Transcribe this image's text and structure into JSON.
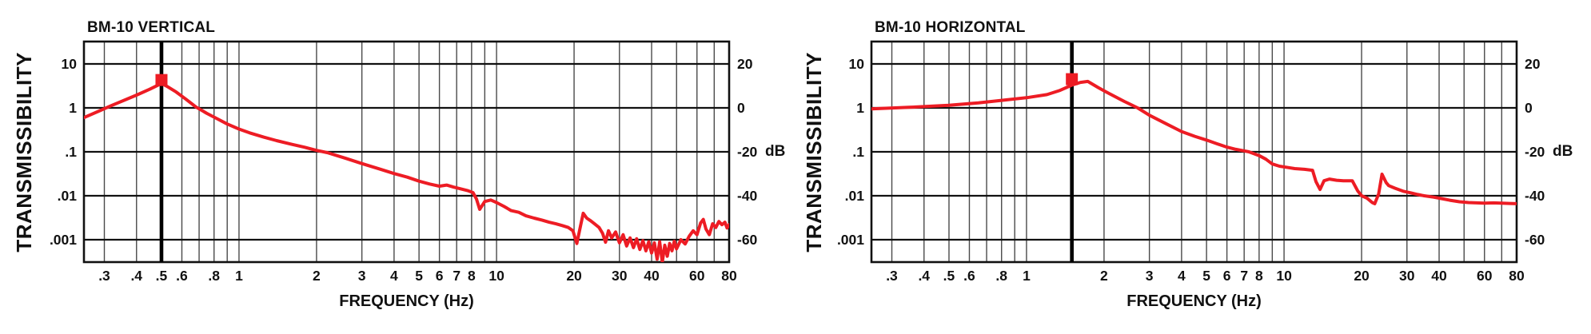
{
  "page": {
    "background": "#FFFFFF"
  },
  "colors": {
    "curve_red": "#ED1C24",
    "marker_red": "#ED1C24",
    "axis_black": "#111111",
    "grid_minor_gray": "#4A4A4A",
    "natural_frequency_line": "#000000",
    "text": "#111111"
  },
  "chart_data": [
    {
      "type": "line",
      "title": "BM-10 VERTICAL",
      "xlabel": "FREQUENCY (Hz)",
      "ylabel": "TRANSMISSIBILITY",
      "db_unit": "dB",
      "x_scale": "log",
      "y_scale": "log",
      "xlim": [
        0.25,
        80
      ],
      "ylim": [
        0.00031,
        32.3
      ],
      "grid": true,
      "x_gridlines": [
        0.3,
        0.4,
        0.5,
        0.6,
        0.7,
        0.8,
        0.9,
        1,
        2,
        3,
        4,
        5,
        6,
        7,
        8,
        9,
        10,
        20,
        30,
        40,
        50,
        60,
        70
      ],
      "y_gridlines": [
        10,
        1,
        0.1,
        0.01,
        0.001
      ],
      "x_ticks": [
        {
          "f": 0.3,
          "label": ".3"
        },
        {
          "f": 0.4,
          "label": ".4"
        },
        {
          "f": 0.5,
          "label": ".5"
        },
        {
          "f": 0.6,
          "label": ".6"
        },
        {
          "f": 0.8,
          "label": ".8"
        },
        {
          "f": 1,
          "label": "1"
        },
        {
          "f": 2,
          "label": "2"
        },
        {
          "f": 3,
          "label": "3"
        },
        {
          "f": 4,
          "label": "4"
        },
        {
          "f": 5,
          "label": "5"
        },
        {
          "f": 6,
          "label": "6"
        },
        {
          "f": 7,
          "label": "7"
        },
        {
          "f": 8,
          "label": "8"
        },
        {
          "f": 10,
          "label": "10"
        },
        {
          "f": 20,
          "label": "20"
        },
        {
          "f": 30,
          "label": "30"
        },
        {
          "f": 40,
          "label": "40"
        },
        {
          "f": 60,
          "label": "60"
        },
        {
          "f": 80,
          "label": "80"
        }
      ],
      "y_ticks": [
        {
          "v": 10,
          "label": "10"
        },
        {
          "v": 1,
          "label": "1"
        },
        {
          "v": 0.1,
          "label": ".1"
        },
        {
          "v": 0.01,
          "label": ".01"
        },
        {
          "v": 0.001,
          "label": ".001"
        }
      ],
      "db_ticks": [
        {
          "db": 20,
          "label": "20"
        },
        {
          "db": 0,
          "label": "0"
        },
        {
          "db": -20,
          "label": "-20",
          "show_unit": true
        },
        {
          "db": -40,
          "label": "-40"
        },
        {
          "db": -60,
          "label": "-60"
        }
      ],
      "natural_frequency_hz": 0.5,
      "resonance_marker": {
        "f": 0.5,
        "t": 4.3
      },
      "series": [
        {
          "name": "transmissibility",
          "points": [
            [
              0.25,
              0.6
            ],
            [
              0.32,
              1.13
            ],
            [
              0.4,
              1.95
            ],
            [
              0.45,
              2.65
            ],
            [
              0.5,
              3.6
            ],
            [
              0.53,
              3.0
            ],
            [
              0.57,
              2.3
            ],
            [
              0.62,
              1.6
            ],
            [
              0.68,
              1.05
            ],
            [
              0.75,
              0.75
            ],
            [
              0.82,
              0.57
            ],
            [
              0.9,
              0.43
            ],
            [
              1.0,
              0.33
            ],
            [
              1.1,
              0.27
            ],
            [
              1.25,
              0.215
            ],
            [
              1.4,
              0.18
            ],
            [
              1.6,
              0.148
            ],
            [
              1.8,
              0.127
            ],
            [
              2.0,
              0.108
            ],
            [
              2.2,
              0.096
            ],
            [
              2.6,
              0.071
            ],
            [
              3.0,
              0.054
            ],
            [
              3.5,
              0.041
            ],
            [
              4.0,
              0.032
            ],
            [
              4.5,
              0.0265
            ],
            [
              5.0,
              0.0215
            ],
            [
              5.5,
              0.0185
            ],
            [
              6.0,
              0.0165
            ],
            [
              6.4,
              0.0175
            ],
            [
              6.8,
              0.0158
            ],
            [
              7.2,
              0.0145
            ],
            [
              7.7,
              0.0132
            ],
            [
              8.1,
              0.0118
            ],
            [
              8.35,
              0.0085
            ],
            [
              8.6,
              0.0049
            ],
            [
              9.0,
              0.0074
            ],
            [
              9.5,
              0.008
            ],
            [
              10,
              0.007
            ],
            [
              10.7,
              0.0057
            ],
            [
              11.4,
              0.0046
            ],
            [
              12.2,
              0.0042
            ],
            [
              13,
              0.0035
            ],
            [
              14,
              0.0031
            ],
            [
              15,
              0.0028
            ],
            [
              16,
              0.0025
            ],
            [
              17,
              0.0023
            ],
            [
              18,
              0.0021
            ],
            [
              19,
              0.0019
            ],
            [
              19.8,
              0.0016
            ],
            [
              20.5,
              0.00082
            ],
            [
              21.2,
              0.0021
            ],
            [
              21.7,
              0.004
            ],
            [
              22.4,
              0.0031
            ],
            [
              23.2,
              0.0027
            ],
            [
              24,
              0.0023
            ],
            [
              25,
              0.0019
            ],
            [
              25.8,
              0.0014
            ],
            [
              26.5,
              0.00088
            ],
            [
              27.2,
              0.0016
            ],
            [
              28,
              0.0011
            ],
            [
              29,
              0.0015
            ],
            [
              30,
              0.00085
            ],
            [
              31,
              0.0013
            ],
            [
              32,
              0.00072
            ],
            [
              33,
              0.0011
            ],
            [
              34,
              0.00066
            ],
            [
              35,
              0.00105
            ],
            [
              36,
              0.0006
            ],
            [
              37,
              0.00095
            ],
            [
              38,
              0.00056
            ],
            [
              39,
              0.0009
            ],
            [
              40,
              0.0005
            ],
            [
              41,
              0.00085
            ],
            [
              42,
              0.00036
            ],
            [
              43,
              0.0009
            ],
            [
              44,
              0.00031
            ],
            [
              45,
              0.00075
            ],
            [
              46,
              0.00042
            ],
            [
              47,
              0.00082
            ],
            [
              48,
              0.00056
            ],
            [
              49,
              0.00092
            ],
            [
              50,
              0.00062
            ],
            [
              52,
              0.001
            ],
            [
              54,
              0.0008
            ],
            [
              56,
              0.0012
            ],
            [
              58,
              0.0016
            ],
            [
              60,
              0.0013
            ],
            [
              62,
              0.0024
            ],
            [
              63.5,
              0.0029
            ],
            [
              65,
              0.00175
            ],
            [
              67,
              0.0013
            ],
            [
              69,
              0.0023
            ],
            [
              71,
              0.0019
            ],
            [
              73,
              0.0026
            ],
            [
              75,
              0.0022
            ],
            [
              77,
              0.0025
            ],
            [
              78.5,
              0.00185
            ],
            [
              80,
              0.0022
            ]
          ]
        }
      ]
    },
    {
      "type": "line",
      "title": "BM-10 HORIZONTAL",
      "xlabel": "FREQUENCY (Hz)",
      "ylabel": "TRANSMISSIBILITY",
      "db_unit": "dB",
      "x_scale": "log",
      "y_scale": "log",
      "xlim": [
        0.25,
        80
      ],
      "ylim": [
        0.00031,
        32.3
      ],
      "grid": true,
      "x_gridlines": [
        0.3,
        0.4,
        0.5,
        0.6,
        0.7,
        0.8,
        0.9,
        1,
        2,
        3,
        4,
        5,
        6,
        7,
        8,
        9,
        10,
        20,
        30,
        40,
        50,
        60,
        70
      ],
      "y_gridlines": [
        10,
        1,
        0.1,
        0.01,
        0.001
      ],
      "x_ticks": [
        {
          "f": 0.3,
          "label": ".3"
        },
        {
          "f": 0.4,
          "label": ".4"
        },
        {
          "f": 0.5,
          "label": ".5"
        },
        {
          "f": 0.6,
          "label": ".6"
        },
        {
          "f": 0.8,
          "label": ".8"
        },
        {
          "f": 1,
          "label": "1"
        },
        {
          "f": 2,
          "label": "2"
        },
        {
          "f": 3,
          "label": "3"
        },
        {
          "f": 4,
          "label": "4"
        },
        {
          "f": 5,
          "label": "5"
        },
        {
          "f": 6,
          "label": "6"
        },
        {
          "f": 7,
          "label": "7"
        },
        {
          "f": 8,
          "label": "8"
        },
        {
          "f": 10,
          "label": "10"
        },
        {
          "f": 20,
          "label": "20"
        },
        {
          "f": 30,
          "label": "30"
        },
        {
          "f": 40,
          "label": "40"
        },
        {
          "f": 60,
          "label": "60"
        },
        {
          "f": 80,
          "label": "80"
        }
      ],
      "y_ticks": [
        {
          "v": 10,
          "label": "10"
        },
        {
          "v": 1,
          "label": "1"
        },
        {
          "v": 0.1,
          "label": ".1"
        },
        {
          "v": 0.01,
          "label": ".01"
        },
        {
          "v": 0.001,
          "label": ".001"
        }
      ],
      "db_ticks": [
        {
          "db": 20,
          "label": "20"
        },
        {
          "db": 0,
          "label": "0"
        },
        {
          "db": -20,
          "label": "-20",
          "show_unit": true
        },
        {
          "db": -40,
          "label": "-40"
        },
        {
          "db": -60,
          "label": "-60"
        }
      ],
      "natural_frequency_hz": 1.5,
      "resonance_marker": {
        "f": 1.5,
        "t": 4.5
      },
      "series": [
        {
          "name": "transmissibility",
          "points": [
            [
              0.25,
              0.95
            ],
            [
              0.35,
              1.03
            ],
            [
              0.5,
              1.15
            ],
            [
              0.65,
              1.3
            ],
            [
              0.8,
              1.48
            ],
            [
              1.0,
              1.7
            ],
            [
              1.2,
              2.0
            ],
            [
              1.35,
              2.5
            ],
            [
              1.5,
              3.3
            ],
            [
              1.62,
              3.8
            ],
            [
              1.73,
              4.0
            ],
            [
              1.9,
              2.9
            ],
            [
              2.0,
              2.45
            ],
            [
              2.1,
              2.1
            ],
            [
              2.4,
              1.4
            ],
            [
              2.7,
              1.0
            ],
            [
              3.0,
              0.68
            ],
            [
              3.5,
              0.43
            ],
            [
              4.0,
              0.29
            ],
            [
              4.5,
              0.225
            ],
            [
              5.0,
              0.185
            ],
            [
              5.5,
              0.152
            ],
            [
              6.0,
              0.128
            ],
            [
              6.5,
              0.114
            ],
            [
              7.0,
              0.105
            ],
            [
              7.3,
              0.1
            ],
            [
              8.0,
              0.082
            ],
            [
              8.5,
              0.068
            ],
            [
              9.0,
              0.053
            ],
            [
              9.6,
              0.047
            ],
            [
              10.2,
              0.0445
            ],
            [
              11,
              0.0415
            ],
            [
              12,
              0.04
            ],
            [
              12.9,
              0.038
            ],
            [
              13.3,
              0.021
            ],
            [
              13.8,
              0.0139
            ],
            [
              14.3,
              0.022
            ],
            [
              15,
              0.024
            ],
            [
              16,
              0.0225
            ],
            [
              17,
              0.022
            ],
            [
              18.4,
              0.022
            ],
            [
              19.3,
              0.013
            ],
            [
              20,
              0.01
            ],
            [
              21,
              0.0088
            ],
            [
              22,
              0.007
            ],
            [
              22.5,
              0.0066
            ],
            [
              23.3,
              0.011
            ],
            [
              24,
              0.031
            ],
            [
              24.9,
              0.02
            ],
            [
              25.5,
              0.017
            ],
            [
              27,
              0.0148
            ],
            [
              29,
              0.0127
            ],
            [
              31,
              0.0117
            ],
            [
              33,
              0.0107
            ],
            [
              35,
              0.01
            ],
            [
              38,
              0.0093
            ],
            [
              41,
              0.0086
            ],
            [
              44,
              0.0079
            ],
            [
              48,
              0.0073
            ],
            [
              52,
              0.007
            ],
            [
              56,
              0.0069
            ],
            [
              60,
              0.0068
            ],
            [
              65,
              0.0069
            ],
            [
              70,
              0.0068
            ],
            [
              75,
              0.0067
            ],
            [
              80,
              0.0066
            ]
          ]
        }
      ]
    }
  ]
}
